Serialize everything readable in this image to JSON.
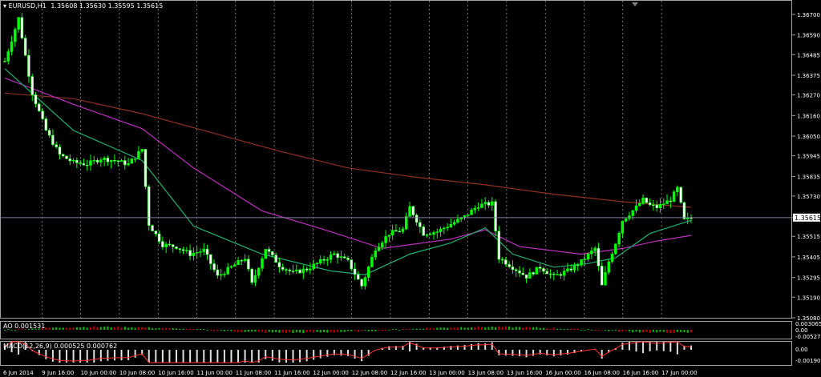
{
  "header": {
    "symbol": "EURUSD,H1",
    "ohlc": "1.35608 1.35630 1.35595 1.35615"
  },
  "ao_panel": {
    "label": "AO 0.001531",
    "scale": [
      "0.003065",
      "0.00",
      "-0.00527"
    ]
  },
  "macd_panel": {
    "label": "MACD(12,26,9) 0.000525 0.000762",
    "scale": [
      "0.00",
      "-0.00190"
    ]
  },
  "colors": {
    "bull": "#00ff00",
    "bear": "#ffffff",
    "ma_fast": "#20b070",
    "ma_mid": "#c030c0",
    "ma_slow": "#903020",
    "grid": "#c0c0c0",
    "price_line": "#8080a0"
  },
  "chart_data": {
    "type": "candlestick",
    "timeframe": "H1",
    "y_ticks": [
      "1.36700",
      "1.36590",
      "1.36485",
      "1.36375",
      "1.36270",
      "1.36160",
      "1.36050",
      "1.35945",
      "1.35835",
      "1.35730",
      "1.35615",
      "1.35515",
      "1.35405",
      "1.35295",
      "1.35190",
      "1.35080"
    ],
    "ylim": [
      1.3508,
      1.367
    ],
    "x_labels": [
      "6 Jun 2014",
      "9 Jun 16:00",
      "10 Jun 00:00",
      "10 Jun 08:00",
      "10 Jun 16:00",
      "11 Jun 00:00",
      "11 Jun 08:00",
      "11 Jun 16:00",
      "12 Jun 00:00",
      "12 Jun 08:00",
      "12 Jun 16:00",
      "13 Jun 00:00",
      "13 Jun 08:00",
      "13 Jun 16:00",
      "16 Jun 00:00",
      "16 Jun 08:00",
      "16 Jun 16:00",
      "17 Jun 00:00"
    ],
    "current_price": 1.35615,
    "grid": true,
    "close_path": [
      [
        0,
        1.3645
      ],
      [
        4,
        1.3668
      ],
      [
        8,
        1.3628
      ],
      [
        12,
        1.3608
      ],
      [
        16,
        1.3595
      ],
      [
        20,
        1.3591
      ],
      [
        24,
        1.359
      ],
      [
        28,
        1.3593
      ],
      [
        32,
        1.3592
      ],
      [
        36,
        1.359
      ],
      [
        38,
        1.3594
      ],
      [
        40,
        1.3598
      ],
      [
        42,
        1.3558
      ],
      [
        46,
        1.3547
      ],
      [
        50,
        1.3546
      ],
      [
        54,
        1.3542
      ],
      [
        58,
        1.3544
      ],
      [
        62,
        1.353
      ],
      [
        66,
        1.3535
      ],
      [
        70,
        1.354
      ],
      [
        72,
        1.3526
      ],
      [
        76,
        1.3545
      ],
      [
        80,
        1.3536
      ],
      [
        84,
        1.3532
      ],
      [
        88,
        1.3534
      ],
      [
        92,
        1.3538
      ],
      [
        96,
        1.3542
      ],
      [
        100,
        1.3538
      ],
      [
        104,
        1.3525
      ],
      [
        108,
        1.3545
      ],
      [
        112,
        1.3553
      ],
      [
        116,
        1.3555
      ],
      [
        118,
        1.3567
      ],
      [
        122,
        1.3553
      ],
      [
        126,
        1.3554
      ],
      [
        130,
        1.3558
      ],
      [
        134,
        1.3562
      ],
      [
        138,
        1.3568
      ],
      [
        142,
        1.3569
      ],
      [
        144,
        1.354
      ],
      [
        148,
        1.3535
      ],
      [
        152,
        1.353
      ],
      [
        156,
        1.3535
      ],
      [
        160,
        1.353
      ],
      [
        164,
        1.3533
      ],
      [
        168,
        1.3538
      ],
      [
        172,
        1.3545
      ],
      [
        174,
        1.3525
      ],
      [
        176,
        1.3538
      ],
      [
        178,
        1.3548
      ],
      [
        180,
        1.356
      ],
      [
        184,
        1.3567
      ],
      [
        186,
        1.3571
      ],
      [
        188,
        1.3568
      ],
      [
        190,
        1.3567
      ],
      [
        192,
        1.3569
      ],
      [
        194,
        1.3571
      ],
      [
        196,
        1.3577
      ],
      [
        198,
        1.356
      ],
      [
        200,
        1.3561
      ]
    ],
    "ma_fast": [
      [
        0,
        1.3641
      ],
      [
        20,
        1.3608
      ],
      [
        40,
        1.3592
      ],
      [
        55,
        1.3557
      ],
      [
        75,
        1.3542
      ],
      [
        95,
        1.3533
      ],
      [
        105,
        1.3531
      ],
      [
        118,
        1.3542
      ],
      [
        130,
        1.3548
      ],
      [
        140,
        1.3556
      ],
      [
        148,
        1.3542
      ],
      [
        160,
        1.3535
      ],
      [
        170,
        1.3537
      ],
      [
        178,
        1.354
      ],
      [
        188,
        1.3553
      ],
      [
        200,
        1.356
      ]
    ],
    "ma_mid": [
      [
        0,
        1.3636
      ],
      [
        20,
        1.3622
      ],
      [
        40,
        1.3609
      ],
      [
        55,
        1.3588
      ],
      [
        75,
        1.3565
      ],
      [
        95,
        1.3554
      ],
      [
        110,
        1.3545
      ],
      [
        130,
        1.355
      ],
      [
        140,
        1.3555
      ],
      [
        150,
        1.3546
      ],
      [
        168,
        1.3542
      ],
      [
        180,
        1.3545
      ],
      [
        190,
        1.3549
      ],
      [
        200,
        1.3552
      ]
    ],
    "ma_slow": [
      [
        0,
        1.3628
      ],
      [
        20,
        1.3625
      ],
      [
        40,
        1.3617
      ],
      [
        60,
        1.3607
      ],
      [
        80,
        1.3597
      ],
      [
        100,
        1.3588
      ],
      [
        120,
        1.3583
      ],
      [
        140,
        1.3579
      ],
      [
        160,
        1.3574
      ],
      [
        180,
        1.357
      ],
      [
        200,
        1.3567
      ]
    ]
  }
}
